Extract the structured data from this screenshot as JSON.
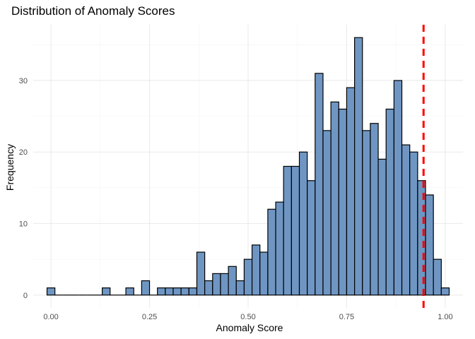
{
  "chart_data": {
    "type": "bar",
    "title": "Distribution of Anomaly Scores",
    "xlabel": "Anomaly Score",
    "ylabel": "Frequency",
    "xlim": [
      -0.045,
      1.045
    ],
    "ylim": [
      -1.8,
      37.8
    ],
    "x_ticks": [
      {
        "value": 0.0,
        "label": "0.00"
      },
      {
        "value": 0.25,
        "label": "0.25"
      },
      {
        "value": 0.5,
        "label": "0.50"
      },
      {
        "value": 0.75,
        "label": "0.75"
      },
      {
        "value": 1.0,
        "label": "1.00"
      }
    ],
    "y_ticks": [
      {
        "value": 0,
        "label": "0"
      },
      {
        "value": 10,
        "label": "10"
      },
      {
        "value": 20,
        "label": "20"
      },
      {
        "value": 30,
        "label": "30"
      }
    ],
    "bin_width": 0.02,
    "bin_centers": [
      0.0,
      0.02,
      0.04,
      0.06,
      0.08,
      0.1,
      0.12,
      0.14,
      0.16,
      0.18,
      0.2,
      0.22,
      0.24,
      0.26,
      0.28,
      0.3,
      0.32,
      0.34,
      0.36,
      0.38,
      0.4,
      0.42,
      0.44,
      0.46,
      0.48,
      0.5,
      0.52,
      0.54,
      0.56,
      0.58,
      0.6,
      0.62,
      0.64,
      0.66,
      0.68,
      0.7,
      0.72,
      0.74,
      0.76,
      0.78,
      0.8,
      0.82,
      0.84,
      0.86,
      0.88,
      0.9,
      0.92,
      0.94,
      0.96,
      0.98,
      1.0
    ],
    "values": [
      1,
      0,
      0,
      0,
      0,
      0,
      0,
      1,
      0,
      0,
      1,
      0,
      2,
      0,
      1,
      1,
      1,
      1,
      1,
      6,
      2,
      3,
      3,
      4,
      2,
      5,
      7,
      6,
      12,
      13,
      18,
      18,
      20,
      16,
      31,
      23,
      27,
      26,
      29,
      36,
      23,
      24,
      19,
      26,
      30,
      21,
      20,
      16,
      14,
      5,
      1
    ],
    "bar_fill": "#6f96c3",
    "threshold": {
      "value": 0.945,
      "color": "#ff0000",
      "style": "dashed"
    },
    "grid": true,
    "legend": "none"
  }
}
